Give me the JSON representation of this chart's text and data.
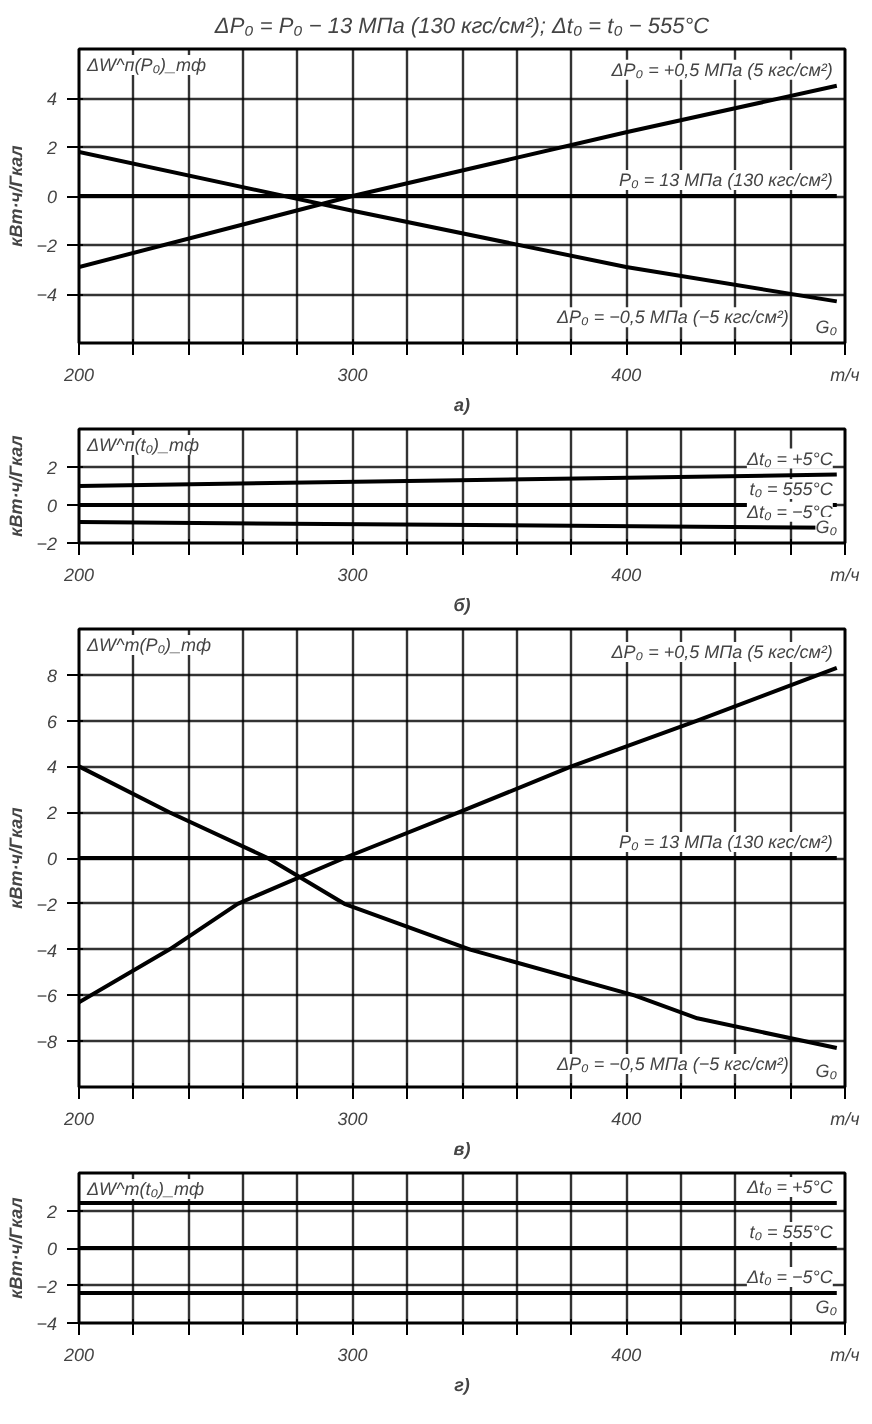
{
  "chart_data": [
    {
      "type": "line",
      "title": "ΔP₀ = P₀ − 13 МПа (130 кгс/см²); Δt₀ = t₀ − 555°C",
      "xlabel": "а)",
      "ylabel": "кВт·ч/Гкал",
      "annotations": [
        "ΔW^п(P₀)_тф",
        "G₀"
      ],
      "xlim": [
        200,
        480
      ],
      "xticks": [
        200,
        {
          "value": 220,
          "label": null
        },
        {
          "value": 240,
          "label": null
        },
        {
          "value": 260,
          "label": null
        },
        {
          "value": 280,
          "label": null
        },
        300,
        {
          "value": 320,
          "label": null
        },
        {
          "value": 340,
          "label": null
        },
        {
          "value": 360,
          "label": null
        },
        {
          "value": 380,
          "label": null
        },
        400,
        {
          "value": 420,
          "label": null
        },
        {
          "value": 440,
          "label": null
        },
        {
          "value": 460,
          "label": null
        },
        {
          "value": 480,
          "label": "т/ч"
        }
      ],
      "ylim": [
        -6,
        6
      ],
      "yticks": [
        -4,
        -2,
        0,
        2,
        4
      ],
      "grid": true,
      "x": [
        200,
        300,
        400,
        477
      ],
      "series": [
        {
          "name": "ΔP₀ = +0,5 МПа (5 кгс/см²)",
          "color": "#000000",
          "values": [
            -2.9,
            0,
            2.6,
            4.5
          ]
        },
        {
          "name": "P₀ = 13 МПа (130 кгс/см²)",
          "color": "#000000",
          "values": [
            0,
            0,
            0,
            0
          ]
        },
        {
          "name": "ΔP₀ = −0,5 МПа (−5 кгс/см²)",
          "color": "#000000",
          "values": [
            1.8,
            -0.6,
            -2.9,
            -4.3
          ]
        }
      ]
    },
    {
      "type": "line",
      "xlabel": "б)",
      "ylabel": "кВт·ч/Гкал",
      "annotations": [
        "ΔW^п(t₀)_тф",
        "G₀"
      ],
      "xlim": [
        200,
        480
      ],
      "xticks": [
        200,
        {
          "value": 220,
          "label": null
        },
        {
          "value": 240,
          "label": null
        },
        {
          "value": 260,
          "label": null
        },
        {
          "value": 280,
          "label": null
        },
        300,
        {
          "value": 320,
          "label": null
        },
        {
          "value": 340,
          "label": null
        },
        {
          "value": 360,
          "label": null
        },
        {
          "value": 380,
          "label": null
        },
        400,
        {
          "value": 420,
          "label": null
        },
        {
          "value": 440,
          "label": null
        },
        {
          "value": 460,
          "label": null
        },
        {
          "value": 480,
          "label": "т/ч"
        }
      ],
      "ylim": [
        -2,
        4
      ],
      "yticks": [
        -2,
        0,
        2
      ],
      "grid": true,
      "x": [
        200,
        477
      ],
      "series": [
        {
          "name": "Δt₀ = +5°C",
          "color": "#000000",
          "values": [
            1.0,
            1.6
          ]
        },
        {
          "name": "t₀ = 555°C",
          "color": "#000000",
          "values": [
            0,
            0
          ]
        },
        {
          "name": "Δt₀ = −5°C",
          "color": "#000000",
          "values": [
            -0.9,
            -1.2
          ]
        }
      ]
    },
    {
      "type": "line",
      "xlabel": "в)",
      "ylabel": "кВт·ч/Гкал",
      "annotations": [
        "ΔW^т(P₀)_тф",
        "G₀"
      ],
      "xlim": [
        200,
        480
      ],
      "xticks": [
        200,
        {
          "value": 220,
          "label": null
        },
        {
          "value": 240,
          "label": null
        },
        {
          "value": 260,
          "label": null
        },
        {
          "value": 280,
          "label": null
        },
        300,
        {
          "value": 320,
          "label": null
        },
        {
          "value": 340,
          "label": null
        },
        {
          "value": 360,
          "label": null
        },
        {
          "value": 380,
          "label": null
        },
        400,
        {
          "value": 420,
          "label": null
        },
        {
          "value": 440,
          "label": null
        },
        {
          "value": 460,
          "label": null
        },
        {
          "value": 480,
          "label": "т/ч"
        }
      ],
      "ylim": [
        -10,
        10
      ],
      "yticks": [
        -8,
        -6,
        -4,
        -2,
        0,
        2,
        4,
        6,
        8
      ],
      "grid": true,
      "series": [
        {
          "name": "ΔP₀ = +0,5 МПа (5 кгс/см²)",
          "color": "#000000",
          "x": [
            200,
            233,
            258,
            297,
            339,
            380,
            426,
            477
          ],
          "values": [
            -6.3,
            -4,
            -2,
            0,
            2,
            4,
            6,
            8.3
          ]
        },
        {
          "name": "P₀ = 13 МПа (130 кгс/см²)",
          "color": "#000000",
          "x": [
            200,
            477
          ],
          "values": [
            0,
            0
          ]
        },
        {
          "name": "ΔP₀ = −0,5 МПа (−5 кгс/см²)",
          "color": "#000000",
          "x": [
            200,
            233,
            269,
            297,
            343,
            403,
            426,
            477
          ],
          "values": [
            4,
            2,
            0,
            -2,
            -4,
            -6,
            -7,
            -8.3
          ]
        }
      ]
    },
    {
      "type": "line",
      "xlabel": "г)",
      "ylabel": "кВт·ч/Гкал",
      "annotations": [
        "ΔW^т(t₀)_тф",
        "G₀"
      ],
      "xlim": [
        200,
        480
      ],
      "xticks": [
        200,
        {
          "value": 220,
          "label": null
        },
        {
          "value": 240,
          "label": null
        },
        {
          "value": 260,
          "label": null
        },
        {
          "value": 280,
          "label": null
        },
        300,
        {
          "value": 320,
          "label": null
        },
        {
          "value": 340,
          "label": null
        },
        {
          "value": 360,
          "label": null
        },
        {
          "value": 380,
          "label": null
        },
        400,
        {
          "value": 420,
          "label": null
        },
        {
          "value": 440,
          "label": null
        },
        {
          "value": 460,
          "label": null
        },
        {
          "value": 480,
          "label": "т/ч"
        }
      ],
      "ylim": [
        -4,
        4
      ],
      "yticks": [
        -4,
        -2,
        0,
        2
      ],
      "grid": true,
      "x": [
        200,
        477
      ],
      "series": [
        {
          "name": "Δt₀ = +5°C",
          "color": "#000000",
          "values": [
            2.4,
            2.4
          ]
        },
        {
          "name": "t₀ = 555°C",
          "color": "#000000",
          "values": [
            0,
            0
          ]
        },
        {
          "name": "Δt₀ = −5°C",
          "color": "#000000",
          "values": [
            -2.4,
            -2.4
          ]
        }
      ]
    }
  ]
}
